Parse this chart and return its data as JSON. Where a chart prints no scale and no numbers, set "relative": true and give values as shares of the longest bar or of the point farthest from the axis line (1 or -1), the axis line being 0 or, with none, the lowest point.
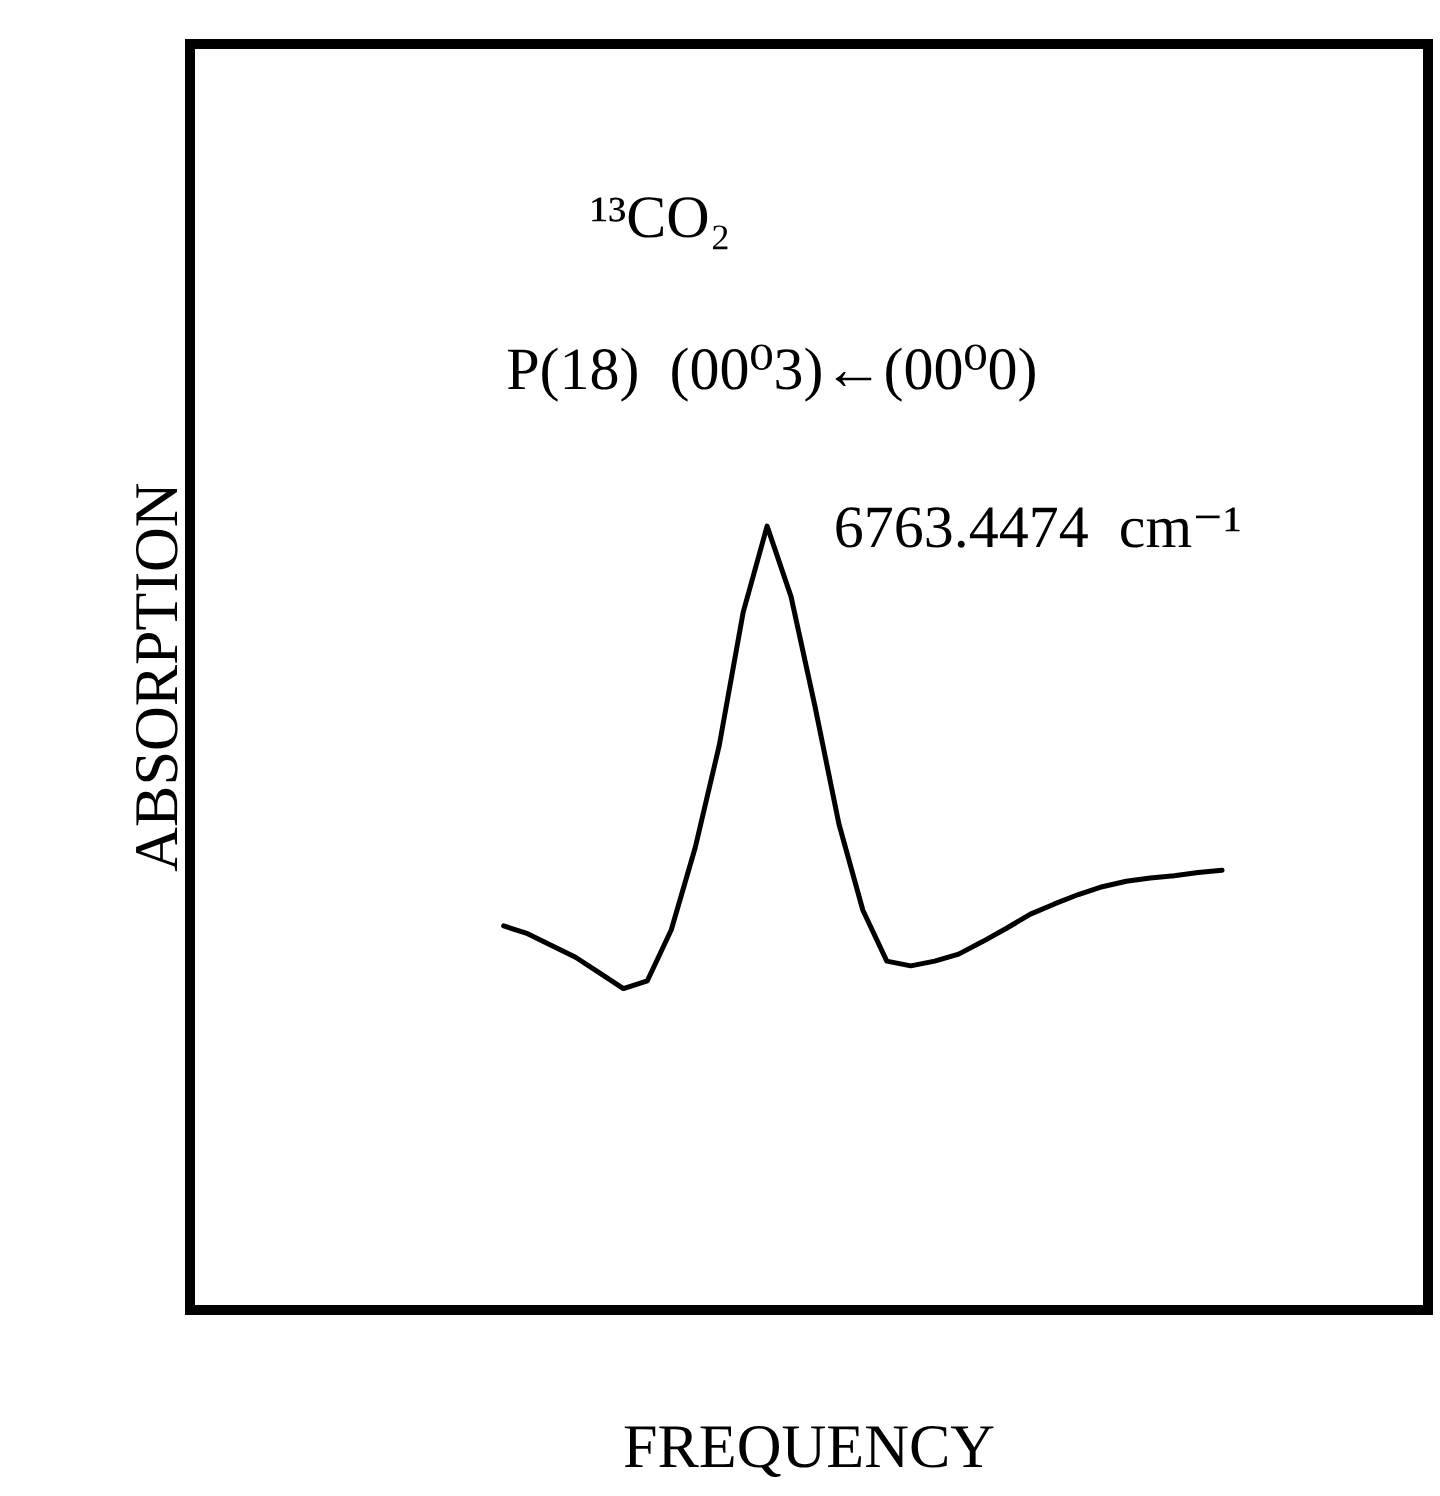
{
  "chart_data": {
    "type": "line",
    "relative": true,
    "xlabel": "FREQUENCY",
    "ylabel": "ABSORPTION",
    "annotations": [
      "¹³CO₂",
      "P(18)  (00⁰3)←(00⁰0)",
      "6763.4474  cm⁻¹"
    ],
    "categories": [
      null,
      null,
      null,
      null,
      null,
      null,
      null,
      null,
      null,
      null,
      null,
      null,
      null,
      null,
      null,
      null,
      null,
      null,
      null,
      null,
      null,
      null,
      null,
      null,
      null,
      null,
      null,
      null,
      null,
      null,
      null
    ],
    "values": [
      0.49,
      0.48,
      0.465,
      0.45,
      0.43,
      0.41,
      0.42,
      0.485,
      0.59,
      0.72,
      0.89,
      1.0,
      0.91,
      0.77,
      0.62,
      0.51,
      0.445,
      0.439,
      0.445,
      0.454,
      0.47,
      0.487,
      0.505,
      0.518,
      0.53,
      0.54,
      0.547,
      0.551,
      0.554,
      0.558,
      0.561
    ],
    "color": "#000000"
  }
}
